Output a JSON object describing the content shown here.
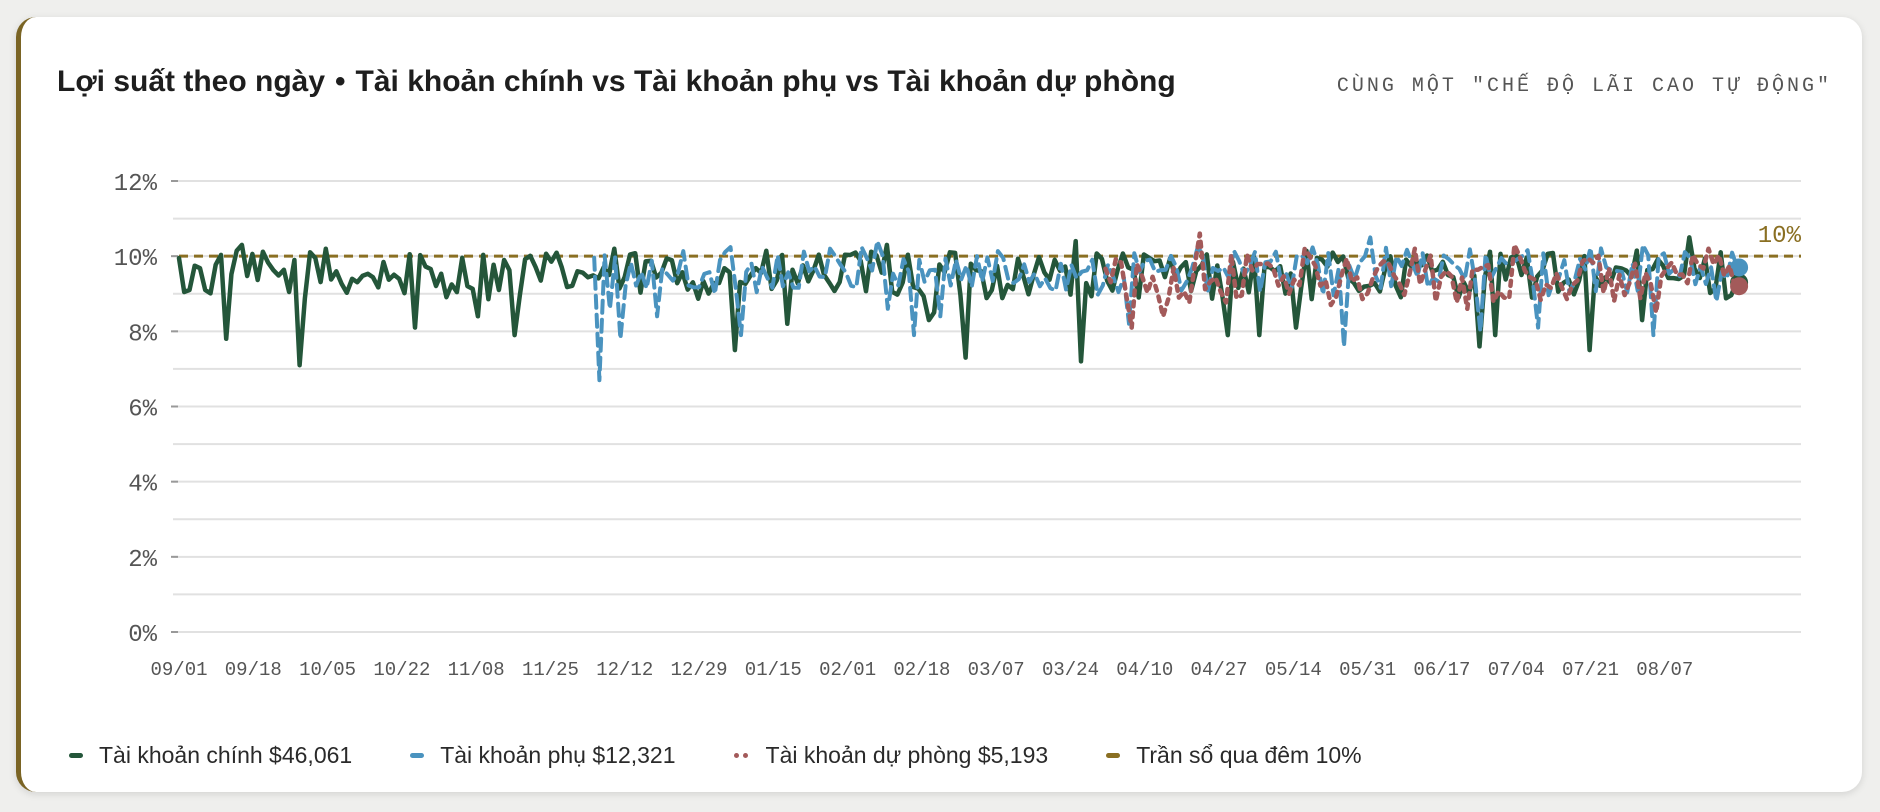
{
  "header": {
    "title_left": "Lợi suất theo ngày",
    "title_sep": "•",
    "title_right": "Tài khoản chính vs Tài khoản phụ vs Tài khoản dự phòng",
    "kicker": "CÙNG MỘT \"CHẾ ĐỘ LÃI CAO TỰ ĐỘNG\""
  },
  "legend": [
    {
      "label": "Tài khoản chính $46,061",
      "color": "#24563a",
      "style": "solid"
    },
    {
      "label": "Tài khoản phụ $12,321",
      "color": "#4a93bf",
      "style": "dashed"
    },
    {
      "label": "Tài khoản dự phòng $5,193",
      "color": "#a35a5a",
      "style": "dotted"
    },
    {
      "label": "Trần sổ qua đêm 10%",
      "color": "#8a6f22",
      "style": "solid"
    }
  ],
  "chart_data": {
    "type": "line",
    "y_unit": "%",
    "ylim": [
      0,
      12
    ],
    "yticks": [
      "0%",
      "2%",
      "4%",
      "6%",
      "8%",
      "10%",
      "12%"
    ],
    "x_tick_labels": [
      "09/01",
      "09/18",
      "10/05",
      "10/22",
      "11/08",
      "11/25",
      "12/12",
      "12/29",
      "01/15",
      "02/01",
      "02/18",
      "03/07",
      "03/24",
      "04/10",
      "04/27",
      "05/14",
      "05/31",
      "06/17",
      "07/04",
      "07/21",
      "08/07"
    ],
    "x_tick_spacing_days": 17,
    "x_range_days": [
      0,
      357
    ],
    "grid": true,
    "reference_line": {
      "value": 10,
      "label": "10%",
      "color": "#8a6f22"
    },
    "series": [
      {
        "name": "Tài khoản chính",
        "color": "#24563a",
        "style": "solid",
        "start_day": 0,
        "end_day": 357,
        "baseline": 9.5,
        "end_value": 9.3,
        "peaks": [
          {
            "day": 14,
            "value": 10.3
          },
          {
            "day": 33,
            "value": 10.2
          },
          {
            "day": 100,
            "value": 10.2
          },
          {
            "day": 162,
            "value": 10.3
          },
          {
            "day": 205,
            "value": 10.4
          },
          {
            "day": 346,
            "value": 10.5
          }
        ],
        "dips": [
          {
            "day": 11,
            "value": 7.8
          },
          {
            "day": 27,
            "value": 7.1
          },
          {
            "day": 54,
            "value": 8.1
          },
          {
            "day": 69,
            "value": 8.4
          },
          {
            "day": 77,
            "value": 7.9
          },
          {
            "day": 127,
            "value": 7.5
          },
          {
            "day": 139,
            "value": 8.2
          },
          {
            "day": 173,
            "value": 8.5
          },
          {
            "day": 172,
            "value": 8.3
          },
          {
            "day": 180,
            "value": 7.3
          },
          {
            "day": 206,
            "value": 7.2
          },
          {
            "day": 240,
            "value": 7.9
          },
          {
            "day": 247,
            "value": 7.9
          },
          {
            "day": 256,
            "value": 8.1
          },
          {
            "day": 297,
            "value": 7.6
          },
          {
            "day": 301,
            "value": 7.9
          },
          {
            "day": 323,
            "value": 7.5
          },
          {
            "day": 335,
            "value": 8.3
          }
        ]
      },
      {
        "name": "Tài khoản phụ",
        "color": "#4a93bf",
        "style": "dashed",
        "start_day": 95,
        "end_day": 357,
        "baseline": 9.6,
        "end_value": 9.7,
        "peaks": [
          {
            "day": 160,
            "value": 10.4
          },
          {
            "day": 273,
            "value": 10.5
          },
          {
            "day": 335,
            "value": 10.3
          }
        ],
        "dips": [
          {
            "day": 96,
            "value": 6.7
          },
          {
            "day": 99,
            "value": 8.6
          },
          {
            "day": 101,
            "value": 7.8
          },
          {
            "day": 110,
            "value": 8.4
          },
          {
            "day": 129,
            "value": 7.9
          },
          {
            "day": 162,
            "value": 8.6
          },
          {
            "day": 168,
            "value": 7.9
          },
          {
            "day": 174,
            "value": 8.4
          },
          {
            "day": 217,
            "value": 8.2
          },
          {
            "day": 266,
            "value": 7.6
          },
          {
            "day": 298,
            "value": 8.0
          },
          {
            "day": 311,
            "value": 8.1
          },
          {
            "day": 337,
            "value": 7.9
          },
          {
            "day": 352,
            "value": 8.8
          }
        ]
      },
      {
        "name": "Tài khoản dự phòng",
        "color": "#a35a5a",
        "style": "dotted",
        "start_day": 212,
        "end_day": 357,
        "baseline": 9.4,
        "end_value": 9.2,
        "peaks": [
          {
            "day": 233,
            "value": 10.6
          },
          {
            "day": 258,
            "value": 10.2
          },
          {
            "day": 283,
            "value": 10.2
          },
          {
            "day": 305,
            "value": 10.3
          },
          {
            "day": 350,
            "value": 10.2
          }
        ],
        "dips": [
          {
            "day": 218,
            "value": 8.1
          },
          {
            "day": 225,
            "value": 8.4
          },
          {
            "day": 264,
            "value": 8.7
          },
          {
            "day": 295,
            "value": 8.6
          },
          {
            "day": 338,
            "value": 8.5
          }
        ]
      }
    ]
  }
}
